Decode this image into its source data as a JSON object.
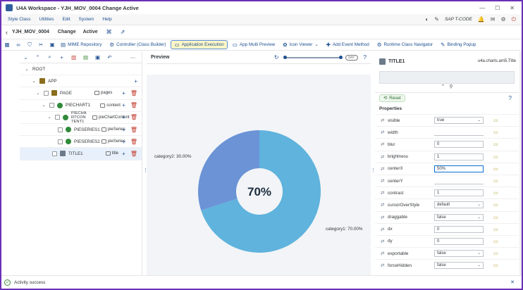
{
  "window": {
    "title": "U4A Workspace - YJH_MOV_0004 Change Active"
  },
  "menubar": {
    "items": [
      "Style Class",
      "Utilities",
      "Edit",
      "System",
      "Help"
    ],
    "tcode": "SAP T-CODE"
  },
  "header": {
    "program": "YJH_MOV_0004",
    "mode": "Change",
    "state": "Active"
  },
  "toolbar": {
    "buttons": [
      {
        "label": "MIME Repository"
      },
      {
        "label": "Controller (Class Builder)"
      },
      {
        "label": "Application Execution"
      },
      {
        "label": "App Multi Preview"
      },
      {
        "label": "Icon Viewer"
      },
      {
        "label": "Add Event Method"
      },
      {
        "label": "Runtime Class Navigator"
      },
      {
        "label": "Binding Popup"
      }
    ]
  },
  "tree": {
    "rows": [
      {
        "label": "ROOT",
        "agg": ""
      },
      {
        "label": "APP",
        "agg": ""
      },
      {
        "label": "PAGE",
        "agg": "pages"
      },
      {
        "label": "PIECHART1",
        "agg": "content"
      },
      {
        "label": "PIECHA RTCON TENT1",
        "agg": "pieChartContent"
      },
      {
        "label": "PIESERIES1",
        "agg": "pieSeries"
      },
      {
        "label": "PIESERIES2",
        "agg": "pieSeries"
      },
      {
        "label": "TITLE1",
        "agg": "title"
      }
    ]
  },
  "preview": {
    "title": "Preview",
    "toggle": "OFF"
  },
  "chart_data": {
    "type": "pie",
    "donut": true,
    "center_label": "70%",
    "slices": [
      {
        "name": "category1",
        "value": 70.0,
        "label": "category1: 70.00%",
        "color": "#5fb3dc"
      },
      {
        "name": "category2",
        "value": 30.0,
        "label": "category2: 30.00%",
        "color": "#6b93d6"
      }
    ]
  },
  "properties": {
    "title": "TITLE1",
    "type": "u4a.charts.am5.Title",
    "reset_label": "Reset",
    "section_label": "Properties",
    "rows": [
      {
        "name": "visible",
        "value": "true",
        "dropdown": true
      },
      {
        "name": "width",
        "value": "",
        "dropdown": false
      },
      {
        "name": "blur",
        "value": "0",
        "dropdown": false
      },
      {
        "name": "brightness",
        "value": "1",
        "dropdown": false
      },
      {
        "name": "centerX",
        "value": "50%",
        "dropdown": false,
        "focused": true
      },
      {
        "name": "centerY",
        "value": "",
        "dropdown": false
      },
      {
        "name": "contrast",
        "value": "1",
        "dropdown": false
      },
      {
        "name": "cursorOverStyle",
        "value": "default",
        "dropdown": true
      },
      {
        "name": "draggable",
        "value": "false",
        "dropdown": true
      },
      {
        "name": "dx",
        "value": "0",
        "dropdown": false
      },
      {
        "name": "dy",
        "value": "0",
        "dropdown": false
      },
      {
        "name": "exportable",
        "value": "false",
        "dropdown": true
      },
      {
        "name": "forceHidden",
        "value": "false",
        "dropdown": true
      }
    ]
  },
  "status": {
    "message": "Activity success"
  }
}
